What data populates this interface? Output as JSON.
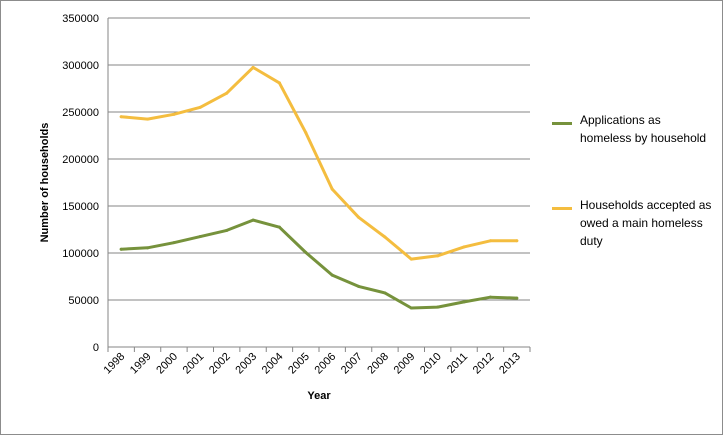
{
  "chart_data": {
    "type": "line",
    "title": "",
    "xlabel": "Year",
    "ylabel": "Number of households",
    "categories": [
      "1998",
      "1999",
      "2000",
      "2001",
      "2002",
      "2003",
      "2004",
      "2005",
      "2006",
      "2007",
      "2008",
      "2009",
      "2010",
      "2011",
      "2012",
      "2013"
    ],
    "ylim": [
      0,
      350000
    ],
    "yticks": [
      0,
      50000,
      100000,
      150000,
      200000,
      250000,
      300000,
      350000
    ],
    "ytick_labels": [
      "0",
      "50000",
      "100000",
      "150000",
      "200000",
      "250000",
      "300000",
      "350000"
    ],
    "grid": true,
    "legend_position": "right",
    "series": [
      {
        "name": "Applications as homeless by household",
        "color": "#76923c",
        "values": [
          104000,
          105500,
          111000,
          117500,
          124000,
          135000,
          127500,
          100500,
          76500,
          64500,
          57500,
          41500,
          42500,
          48000,
          53000,
          52000
        ]
      },
      {
        "name": "Households accepted as owed a main homeless duty",
        "color": "#f4bd3f",
        "values": [
          245000,
          242500,
          247500,
          255000,
          270000,
          297500,
          281000,
          228000,
          168000,
          138000,
          117000,
          93500,
          97000,
          106500,
          113000,
          113000
        ]
      }
    ]
  },
  "legend": {
    "items": [
      {
        "lines": [
          "Applications as",
          "homeless by household"
        ]
      },
      {
        "lines": [
          "Households accepted as",
          "owed a main homeless",
          "duty"
        ]
      }
    ]
  }
}
